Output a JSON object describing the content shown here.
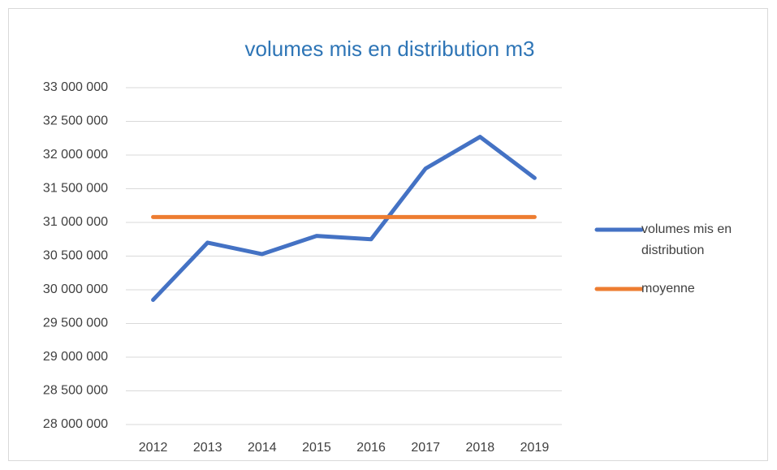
{
  "chart_data": {
    "type": "line",
    "title": "volumes mis en distribution m3",
    "categories": [
      "2012",
      "2013",
      "2014",
      "2015",
      "2016",
      "2017",
      "2018",
      "2019"
    ],
    "series": [
      {
        "name": "volumes mis en distribution",
        "color": "#4472c4",
        "values": [
          29850000,
          30700000,
          30530000,
          30800000,
          30750000,
          31800000,
          32270000,
          31660000
        ]
      },
      {
        "name": "moyenne",
        "color": "#ed7d31",
        "values": [
          31080000,
          31080000,
          31080000,
          31080000,
          31080000,
          31080000,
          31080000,
          31080000
        ]
      }
    ],
    "ylim": [
      28000000,
      33000000
    ],
    "yticks": [
      {
        "value": 28000000,
        "label": "28 000 000"
      },
      {
        "value": 28500000,
        "label": "28 500 000"
      },
      {
        "value": 29000000,
        "label": "29 000 000"
      },
      {
        "value": 29500000,
        "label": "29 500 000"
      },
      {
        "value": 30000000,
        "label": "30 000 000"
      },
      {
        "value": 30500000,
        "label": "30 500 000"
      },
      {
        "value": 31000000,
        "label": "31 000 000"
      },
      {
        "value": 31500000,
        "label": "31 500 000"
      },
      {
        "value": 32000000,
        "label": "32 000 000"
      },
      {
        "value": 32500000,
        "label": "32 500 000"
      },
      {
        "value": 33000000,
        "label": "33 000 000"
      }
    ],
    "grid": true,
    "legend": "right"
  }
}
